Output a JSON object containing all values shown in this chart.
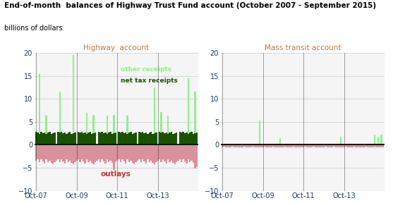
{
  "title": "End-of-month  balances of Highway Trust Fund account (October 2007 - September 2015)",
  "subtitle": "billions of dollars",
  "left_title": "Highway  account",
  "right_title": "Mass transit account",
  "ylim": [
    -10,
    20
  ],
  "yticks": [
    -10,
    -5,
    0,
    5,
    10,
    15,
    20
  ],
  "xtick_labels": [
    "Oct-07",
    "Oct-09",
    "Oct-11",
    "Oct-13"
  ],
  "n_months": 96,
  "dark_green": "#1a5200",
  "light_green": "#90ee90",
  "pink": "#d9919b",
  "bg_color": "#f5f5f5",
  "grid_color": "#d8d8d8",
  "label_other": "other receipts",
  "label_net": "net tax receipts",
  "label_outlays": "outlays",
  "title_color": "#000000",
  "axis_label_color": "#1a3a6b",
  "highway_net_tax": [
    2.8,
    2.6,
    2.4,
    2.9,
    2.5,
    2.7,
    2.4,
    2.6,
    2.8,
    2.3,
    2.5,
    2.7,
    0.1,
    2.8,
    2.6,
    2.9,
    2.5,
    2.7,
    2.4,
    2.6,
    2.8,
    2.3,
    2.5,
    2.7,
    0.1,
    2.8,
    2.6,
    2.9,
    2.5,
    2.7,
    2.4,
    2.6,
    2.8,
    2.3,
    2.5,
    2.7,
    0.1,
    2.8,
    2.6,
    2.9,
    2.5,
    2.7,
    2.4,
    2.6,
    2.8,
    2.3,
    2.5,
    2.7,
    0.1,
    2.8,
    2.6,
    2.9,
    2.5,
    2.7,
    2.4,
    2.6,
    2.8,
    2.3,
    2.5,
    2.7,
    0.1,
    2.8,
    2.6,
    2.9,
    2.5,
    2.7,
    2.4,
    2.6,
    2.8,
    2.3,
    2.5,
    2.7,
    0.1,
    2.8,
    2.6,
    2.9,
    2.5,
    2.7,
    2.4,
    2.6,
    2.8,
    2.3,
    2.5,
    2.7,
    0.1,
    2.8,
    2.6,
    2.9,
    2.5,
    2.7,
    2.4,
    2.6,
    2.8,
    2.3,
    2.5,
    2.7
  ],
  "highway_other": [
    0,
    0,
    13,
    0,
    0,
    0,
    4,
    0,
    0,
    0,
    0,
    0,
    0,
    0,
    9,
    0,
    0,
    0,
    0,
    0,
    0,
    0,
    17,
    0,
    0,
    0,
    0,
    0,
    0,
    0,
    4.5,
    0,
    0,
    0,
    4,
    0,
    0,
    0,
    0,
    0,
    0,
    0,
    4,
    0,
    0,
    0,
    4,
    0,
    0,
    0,
    0,
    0,
    0,
    0,
    4,
    0,
    0,
    0,
    0,
    0,
    0,
    0,
    0,
    0,
    0,
    0,
    0,
    0,
    0,
    0,
    10,
    0,
    0,
    0,
    4.5,
    0,
    0,
    0,
    4,
    0,
    0,
    0,
    0,
    0,
    0,
    0,
    0,
    0,
    0,
    0,
    12,
    0,
    0,
    0,
    9,
    0
  ],
  "highway_outlays": [
    -3.5,
    -3.2,
    -3.8,
    -3.1,
    -3.6,
    -4.0,
    -3.2,
    -3.8,
    -3.5,
    -3.9,
    -4.2,
    -3.7,
    -3.5,
    -3.2,
    -3.8,
    -3.1,
    -3.6,
    -4.0,
    -3.2,
    -3.8,
    -3.5,
    -3.9,
    -4.2,
    -3.7,
    -3.5,
    -3.2,
    -3.8,
    -3.1,
    -3.6,
    -4.0,
    -3.2,
    -3.8,
    -3.5,
    -3.9,
    -4.2,
    -3.7,
    -3.5,
    -3.2,
    -3.8,
    -3.1,
    -3.6,
    -4.0,
    -3.2,
    -3.8,
    -3.5,
    -3.9,
    -5.5,
    -3.7,
    -3.5,
    -3.2,
    -3.8,
    -3.1,
    -3.6,
    -4.0,
    -3.2,
    -3.8,
    -3.5,
    -3.9,
    -4.2,
    -3.7,
    -3.5,
    -3.2,
    -3.8,
    -3.1,
    -3.6,
    -4.0,
    -3.2,
    -3.8,
    -3.5,
    -3.9,
    -4.2,
    -3.7,
    -3.5,
    -3.2,
    -3.8,
    -3.1,
    -3.6,
    -4.0,
    -3.2,
    -3.8,
    -3.5,
    -3.9,
    -4.2,
    -3.7,
    -3.5,
    -3.2,
    -3.8,
    -3.1,
    -3.6,
    -4.0,
    -3.2,
    -3.8,
    -3.5,
    -3.9,
    -5.1,
    -4.9
  ],
  "transit_net_tax": [
    0.25,
    0.22,
    0.24,
    0.26,
    0.21,
    0.23,
    0.2,
    0.22,
    0.24,
    0.2,
    0.22,
    0.23,
    0.01,
    0.24,
    0.22,
    0.25,
    0.21,
    0.23,
    0.2,
    0.22,
    0.24,
    0.2,
    0.22,
    0.23,
    0.01,
    0.24,
    0.22,
    0.25,
    0.21,
    0.23,
    0.2,
    0.22,
    0.24,
    0.2,
    0.22,
    0.23,
    0.01,
    0.24,
    0.22,
    0.25,
    0.21,
    0.23,
    0.2,
    0.22,
    0.24,
    0.2,
    0.22,
    0.23,
    0.01,
    0.24,
    0.22,
    0.25,
    0.21,
    0.23,
    0.2,
    0.22,
    0.24,
    0.2,
    0.22,
    0.23,
    0.01,
    0.24,
    0.22,
    0.25,
    0.21,
    0.23,
    0.2,
    0.22,
    0.24,
    0.2,
    0.22,
    0.23,
    0.01,
    0.24,
    0.22,
    0.25,
    0.21,
    0.23,
    0.2,
    0.22,
    0.24,
    0.2,
    0.22,
    0.23,
    0.01,
    0.24,
    0.22,
    0.25,
    0.21,
    0.23,
    0.2,
    0.22,
    0.24,
    0.2,
    0.22,
    0.23
  ],
  "transit_other": [
    0,
    0,
    0,
    0,
    0,
    0,
    0,
    0,
    0,
    0,
    0,
    0,
    0,
    0,
    0,
    0,
    0,
    0,
    0,
    0,
    0,
    0,
    5,
    0,
    0,
    0,
    0,
    0,
    0,
    0,
    0,
    0,
    0,
    0,
    1.2,
    0,
    0,
    0,
    0,
    0,
    0,
    0,
    0,
    0,
    0,
    0,
    0,
    0,
    0,
    0,
    0,
    0,
    0,
    0,
    0,
    0,
    0,
    0,
    0,
    0,
    0,
    0,
    0,
    0,
    0,
    0,
    0,
    0,
    0,
    0,
    1.5,
    0,
    0,
    0,
    0,
    0,
    0,
    0,
    0,
    0,
    0,
    0,
    0,
    0,
    0,
    0,
    0,
    0,
    0,
    0,
    2.0,
    0,
    1.5,
    0,
    2.0,
    0
  ],
  "transit_outlays": [
    -0.5,
    -0.45,
    -0.55,
    -0.48,
    -0.52,
    -0.6,
    -0.45,
    -0.55,
    -0.5,
    -0.58,
    -0.62,
    -0.53,
    -0.5,
    -0.45,
    -0.55,
    -0.48,
    -0.52,
    -0.6,
    -0.45,
    -0.55,
    -0.5,
    -0.58,
    -0.62,
    -0.53,
    -0.5,
    -0.45,
    -0.55,
    -0.48,
    -0.52,
    -0.6,
    -0.45,
    -0.55,
    -0.5,
    -0.58,
    -0.62,
    -0.53,
    -0.5,
    -0.45,
    -0.55,
    -0.48,
    -0.52,
    -0.6,
    -0.45,
    -0.55,
    -0.5,
    -0.58,
    -0.62,
    -0.53,
    -0.5,
    -0.45,
    -0.55,
    -0.48,
    -0.52,
    -0.6,
    -0.45,
    -0.55,
    -0.5,
    -0.58,
    -0.62,
    -0.53,
    -0.5,
    -0.45,
    -0.55,
    -0.48,
    -0.52,
    -0.6,
    -0.45,
    -0.55,
    -0.5,
    -0.58,
    -0.62,
    -0.53,
    -0.5,
    -0.45,
    -0.55,
    -0.48,
    -0.52,
    -0.6,
    -0.45,
    -0.55,
    -0.5,
    -0.58,
    -0.62,
    -0.53,
    -0.5,
    -0.45,
    -0.55,
    -0.48,
    -0.52,
    -0.6,
    -0.45,
    -0.55,
    -0.5,
    -0.58,
    -0.62,
    -0.53
  ]
}
